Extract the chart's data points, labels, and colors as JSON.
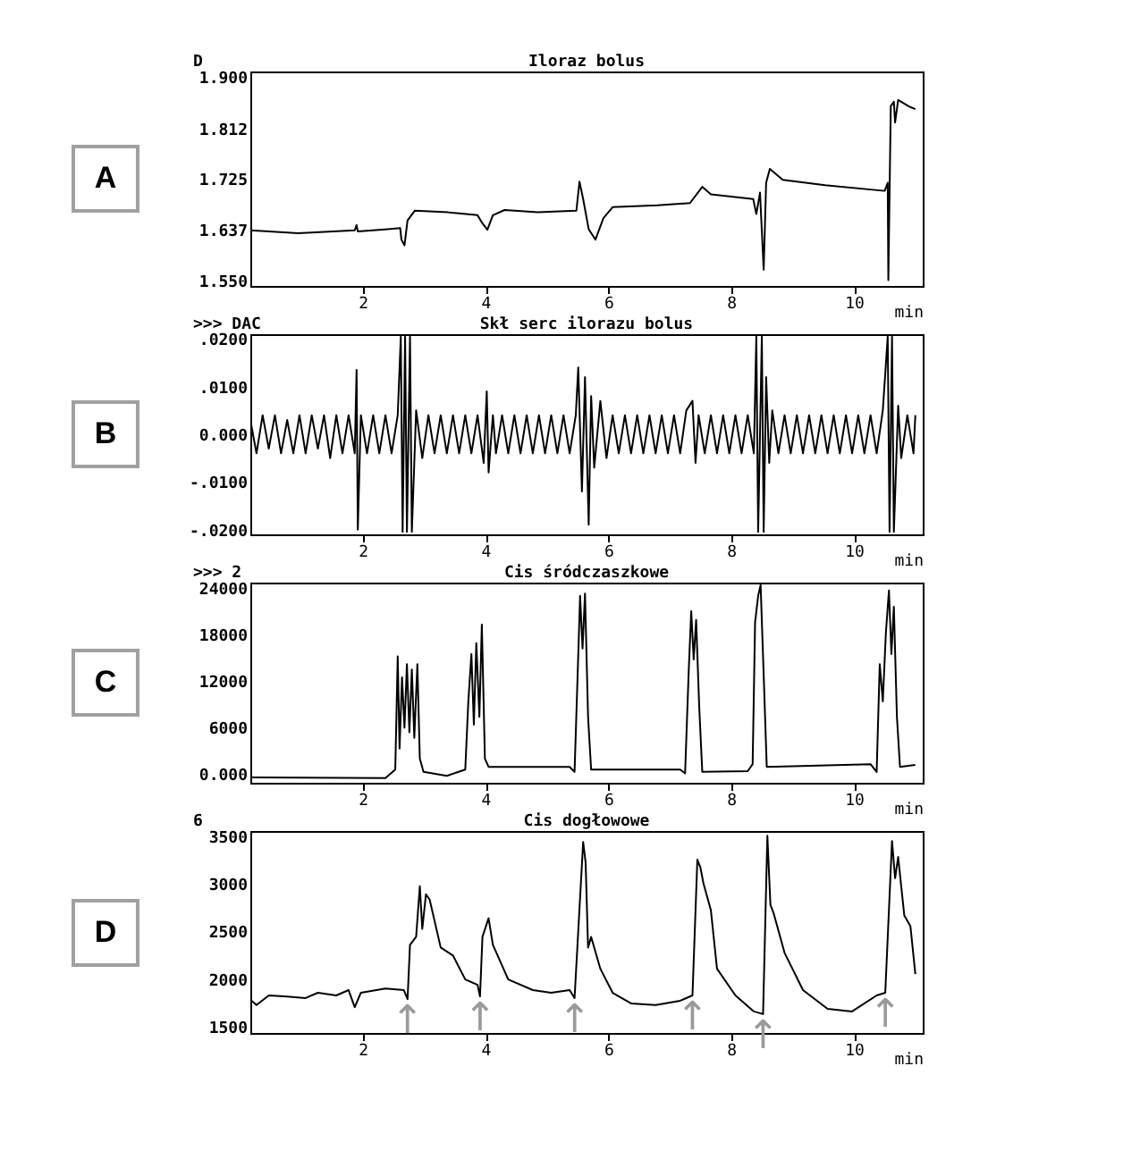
{
  "chart_data": [
    {
      "type": "line",
      "title": "Iloraz bolus",
      "xlabel": "min",
      "annotations": [
        "A",
        "D"
      ],
      "xlim": [
        0.17,
        11.12
      ],
      "xticks": [
        2,
        4,
        6,
        8,
        10
      ],
      "ylim": [
        1.54,
        1.91
      ],
      "yticks": [
        {
          "value": 1.55,
          "label": "1.550"
        },
        {
          "value": 1.637,
          "label": "1.637"
        },
        {
          "value": 1.725,
          "label": "1.725"
        },
        {
          "value": 1.812,
          "label": "1.812"
        },
        {
          "value": 1.9,
          "label": "1.900"
        }
      ],
      "series": [
        {
          "color": "#000000",
          "x": [
            0.17,
            0.95,
            1.87,
            1.9,
            1.92,
            2.41,
            2.61,
            2.63,
            2.68,
            2.73,
            2.85,
            3.39,
            3.87,
            3.95,
            4.03,
            4.12,
            4.31,
            4.85,
            5.48,
            5.53,
            5.59,
            5.68,
            5.79,
            5.92,
            6.07,
            6.8,
            7.33,
            7.53,
            7.67,
            8.36,
            8.41,
            8.47,
            8.53,
            8.57,
            8.63,
            8.84,
            9.53,
            10.5,
            10.55,
            10.56,
            10.6,
            10.65,
            10.67,
            10.72,
            10.89,
            11.0
          ],
          "values": [
            1.636,
            1.631,
            1.636,
            1.645,
            1.634,
            1.638,
            1.64,
            1.62,
            1.61,
            1.653,
            1.67,
            1.667,
            1.662,
            1.648,
            1.637,
            1.662,
            1.671,
            1.667,
            1.67,
            1.72,
            1.69,
            1.638,
            1.62,
            1.657,
            1.676,
            1.679,
            1.683,
            1.711,
            1.698,
            1.69,
            1.664,
            1.701,
            1.568,
            1.718,
            1.742,
            1.723,
            1.714,
            1.704,
            1.718,
            1.55,
            1.85,
            1.858,
            1.822,
            1.861,
            1.85,
            1.845
          ]
        }
      ]
    },
    {
      "type": "line",
      "title": "Skł serc ilorazu bolus",
      "xlabel": "min",
      "annotations": [
        "B",
        ">>> DAC"
      ],
      "xlim": [
        0.17,
        11.12
      ],
      "xticks": [
        2,
        4,
        6,
        8,
        10
      ],
      "ylim": [
        -0.021,
        0.021
      ],
      "yticks": [
        {
          "value": -0.02,
          "label": "-.0200"
        },
        {
          "value": -0.01,
          "label": "-.0100"
        },
        {
          "value": 0,
          "label": "0.000"
        },
        {
          "value": 0.01,
          "label": ".0100"
        },
        {
          "value": 0.02,
          "label": ".0200"
        }
      ],
      "series": [
        {
          "color": "#000000",
          "x": [
            0.17,
            0.27,
            0.37,
            0.47,
            0.57,
            0.67,
            0.77,
            0.87,
            0.97,
            1.07,
            1.17,
            1.27,
            1.37,
            1.47,
            1.57,
            1.67,
            1.77,
            1.87,
            1.9,
            1.92,
            1.97,
            2.07,
            2.17,
            2.27,
            2.37,
            2.47,
            2.57,
            2.62,
            2.65,
            2.69,
            2.72,
            2.77,
            2.8,
            2.87,
            2.97,
            3.07,
            3.17,
            3.27,
            3.37,
            3.47,
            3.57,
            3.67,
            3.77,
            3.87,
            3.97,
            4.02,
            4.05,
            4.12,
            4.17,
            4.27,
            4.37,
            4.47,
            4.57,
            4.67,
            4.77,
            4.87,
            4.97,
            5.07,
            5.17,
            5.27,
            5.37,
            5.47,
            5.51,
            5.57,
            5.62,
            5.68,
            5.72,
            5.77,
            5.87,
            5.97,
            6.07,
            6.17,
            6.27,
            6.37,
            6.47,
            6.57,
            6.67,
            6.77,
            6.87,
            6.97,
            7.07,
            7.17,
            7.27,
            7.37,
            7.42,
            7.47,
            7.57,
            7.67,
            7.77,
            7.87,
            7.97,
            8.07,
            8.17,
            8.27,
            8.37,
            8.41,
            8.44,
            8.5,
            8.53,
            8.57,
            8.62,
            8.67,
            8.77,
            8.87,
            8.97,
            9.07,
            9.17,
            9.27,
            9.37,
            9.47,
            9.57,
            9.67,
            9.77,
            9.87,
            9.97,
            10.07,
            10.17,
            10.27,
            10.37,
            10.47,
            10.55,
            10.58,
            10.62,
            10.65,
            10.72,
            10.77,
            10.87,
            10.97,
            11.0
          ],
          "values": [
            0.003,
            -0.004,
            0.004,
            -0.003,
            0.004,
            -0.004,
            0.003,
            -0.004,
            0.004,
            -0.004,
            0.004,
            -0.003,
            0.004,
            -0.005,
            0.004,
            -0.004,
            0.004,
            -0.004,
            0.0135,
            -0.02,
            0.004,
            -0.004,
            0.004,
            -0.004,
            0.004,
            -0.004,
            0.004,
            0.0205,
            -0.0205,
            0.0205,
            -0.0205,
            0.0205,
            -0.0205,
            0.005,
            -0.005,
            0.004,
            -0.004,
            0.004,
            -0.004,
            0.004,
            -0.004,
            0.004,
            -0.004,
            0.004,
            -0.006,
            0.009,
            -0.008,
            0.004,
            -0.004,
            0.004,
            -0.004,
            0.004,
            -0.004,
            0.004,
            -0.004,
            0.004,
            -0.004,
            0.004,
            -0.004,
            0.004,
            -0.004,
            0.004,
            0.014,
            -0.012,
            0.012,
            -0.019,
            0.008,
            -0.007,
            0.007,
            -0.005,
            0.004,
            -0.004,
            0.004,
            -0.004,
            0.004,
            -0.004,
            0.004,
            -0.004,
            0.004,
            -0.004,
            0.004,
            -0.004,
            0.005,
            0.007,
            -0.006,
            0.004,
            -0.004,
            0.004,
            -0.004,
            0.004,
            -0.004,
            0.004,
            -0.004,
            0.004,
            -0.004,
            0.0205,
            -0.0205,
            0.0205,
            -0.0205,
            0.012,
            -0.006,
            0.005,
            -0.004,
            0.004,
            -0.004,
            0.004,
            -0.004,
            0.004,
            -0.004,
            0.004,
            -0.004,
            0.004,
            -0.004,
            0.004,
            -0.004,
            0.004,
            -0.004,
            0.004,
            -0.004,
            0.005,
            0.0205,
            -0.0205,
            0.0205,
            -0.0205,
            0.006,
            -0.005,
            0.004,
            -0.004,
            0.004
          ]
        }
      ]
    },
    {
      "type": "line",
      "title": "Cis śródczaszkowe",
      "xlabel": "min",
      "annotations": [
        "C",
        ">>> 2"
      ],
      "xlim": [
        0.17,
        11.12
      ],
      "xticks": [
        2,
        4,
        6,
        8,
        10
      ],
      "ylim": [
        -1100,
        24700
      ],
      "yticks": [
        {
          "value": 0,
          "label": "0.000"
        },
        6000,
        12000,
        18000,
        24000
      ],
      "series": [
        {
          "color": "#000000",
          "x": [
            0.17,
            2.37,
            2.53,
            2.57,
            2.6,
            2.64,
            2.68,
            2.72,
            2.76,
            2.8,
            2.84,
            2.89,
            2.93,
            2.99,
            3.37,
            3.67,
            3.72,
            3.77,
            3.81,
            3.85,
            3.9,
            3.94,
            3.99,
            4.05,
            5.37,
            5.45,
            5.5,
            5.54,
            5.58,
            5.62,
            5.67,
            5.72,
            7.17,
            7.25,
            7.31,
            7.35,
            7.39,
            7.43,
            7.48,
            7.53,
            8.27,
            8.35,
            8.39,
            8.44,
            8.48,
            8.53,
            8.58,
            10.27,
            10.37,
            10.42,
            10.47,
            10.52,
            10.57,
            10.61,
            10.65,
            10.7,
            10.75,
            11.0
          ],
          "values": [
            -400,
            -500,
            600,
            15200,
            3300,
            12500,
            6000,
            14200,
            5400,
            13500,
            4700,
            14200,
            2000,
            300,
            -200,
            600,
            9400,
            15500,
            6400,
            16900,
            7400,
            19300,
            2000,
            950,
            950,
            300,
            12800,
            23000,
            16200,
            23300,
            7400,
            600,
            600,
            100,
            13500,
            21000,
            14800,
            19900,
            8700,
            300,
            400,
            1300,
            19600,
            23000,
            24400,
            12800,
            950,
            1300,
            300,
            14200,
            9400,
            18200,
            23700,
            15500,
            21600,
            7400,
            950,
            1200
          ]
        }
      ]
    },
    {
      "type": "line",
      "title": "Cis dogłowowe",
      "xlabel": "min",
      "annotations": [
        "D",
        "6",
        {
          "text": "↑",
          "x": 2.73,
          "y": 1787
        },
        {
          "text": "↑",
          "x": 3.91,
          "y": 1815
        },
        {
          "text": "↑",
          "x": 5.45,
          "y": 1798
        },
        {
          "text": "↑",
          "x": 7.37,
          "y": 1826
        },
        {
          "text": "↑",
          "x": 8.52,
          "y": 1629
        },
        {
          "text": "↑",
          "x": 10.51,
          "y": 1854
        }
      ],
      "xlim": [
        0.17,
        11.12
      ],
      "xticks": [
        2,
        4,
        6,
        8,
        10
      ],
      "ylim": [
        1430,
        3560
      ],
      "yticks": [
        1500,
        2000,
        2500,
        3000,
        3500
      ],
      "series": [
        {
          "color": "#000000",
          "x": [
            0.17,
            0.27,
            0.47,
            0.77,
            1.07,
            1.27,
            1.57,
            1.77,
            1.87,
            1.97,
            2.37,
            2.67,
            2.73,
            2.77,
            2.87,
            2.93,
            2.97,
            3.03,
            3.09,
            3.27,
            3.47,
            3.67,
            3.87,
            3.91,
            3.95,
            4.05,
            4.12,
            4.37,
            4.77,
            5.07,
            5.37,
            5.45,
            5.59,
            5.63,
            5.67,
            5.72,
            5.87,
            6.07,
            6.37,
            6.77,
            7.17,
            7.37,
            7.45,
            7.5,
            7.55,
            7.67,
            7.77,
            8.07,
            8.37,
            8.52,
            8.59,
            8.64,
            8.69,
            8.87,
            9.17,
            9.57,
            9.97,
            10.37,
            10.51,
            10.62,
            10.67,
            10.72,
            10.82,
            10.92,
            11.0
          ],
          "values": [
            1781,
            1725,
            1826,
            1815,
            1798,
            1854,
            1826,
            1882,
            1702,
            1854,
            1899,
            1882,
            1787,
            2360,
            2444,
            2978,
            2528,
            2893,
            2837,
            2331,
            2247,
            1994,
            1938,
            1815,
            2444,
            2640,
            2360,
            1994,
            1882,
            1854,
            1882,
            1798,
            3444,
            3230,
            2331,
            2444,
            2107,
            1854,
            1742,
            1725,
            1770,
            1826,
            3258,
            3174,
            3006,
            2725,
            2107,
            1826,
            1657,
            1629,
            3511,
            2781,
            2697,
            2275,
            1882,
            1685,
            1657,
            1826,
            1854,
            3455,
            3062,
            3286,
            2669,
            2556,
            2051
          ]
        }
      ]
    }
  ]
}
